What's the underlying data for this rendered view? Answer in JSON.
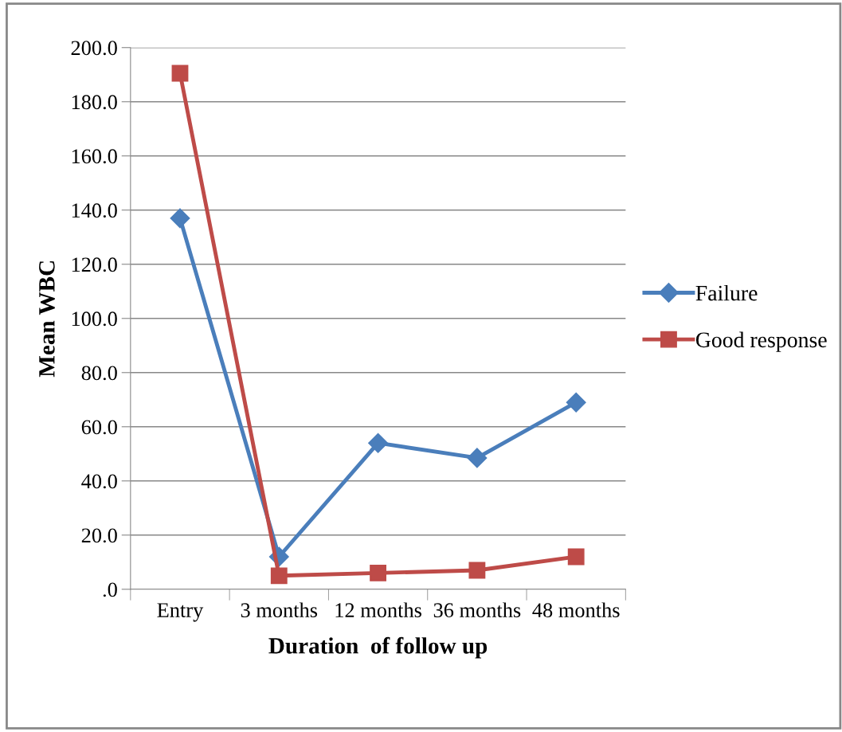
{
  "chart_data": {
    "type": "line",
    "xlabel": "Duration  of follow up",
    "ylabel": "Mean WBC",
    "categories": [
      "Entry",
      "3 months",
      "12 months",
      "36 months",
      "48 months"
    ],
    "series": [
      {
        "name": "Failure",
        "color": "#4a7ebb",
        "marker": "diamond",
        "values": [
          137,
          12,
          54,
          48.5,
          69
        ]
      },
      {
        "name": "Good response",
        "color": "#be4b48",
        "marker": "square",
        "values": [
          190.5,
          5,
          6,
          7,
          12
        ]
      }
    ],
    "ylim": [
      0,
      200
    ],
    "yticks": [
      {
        "value": 0,
        "label": ".0"
      },
      {
        "value": 20,
        "label": "20.0"
      },
      {
        "value": 40,
        "label": "40.0"
      },
      {
        "value": 60,
        "label": "60.0"
      },
      {
        "value": 80,
        "label": "80.0"
      },
      {
        "value": 100,
        "label": "100.0"
      },
      {
        "value": 120,
        "label": "120.0"
      },
      {
        "value": 140,
        "label": "140.0"
      },
      {
        "value": 160,
        "label": "160.0"
      },
      {
        "value": 180,
        "label": "180.0"
      },
      {
        "value": 200,
        "label": "200.0"
      }
    ],
    "grid": "y",
    "legend": "right",
    "line_style": "solid"
  }
}
